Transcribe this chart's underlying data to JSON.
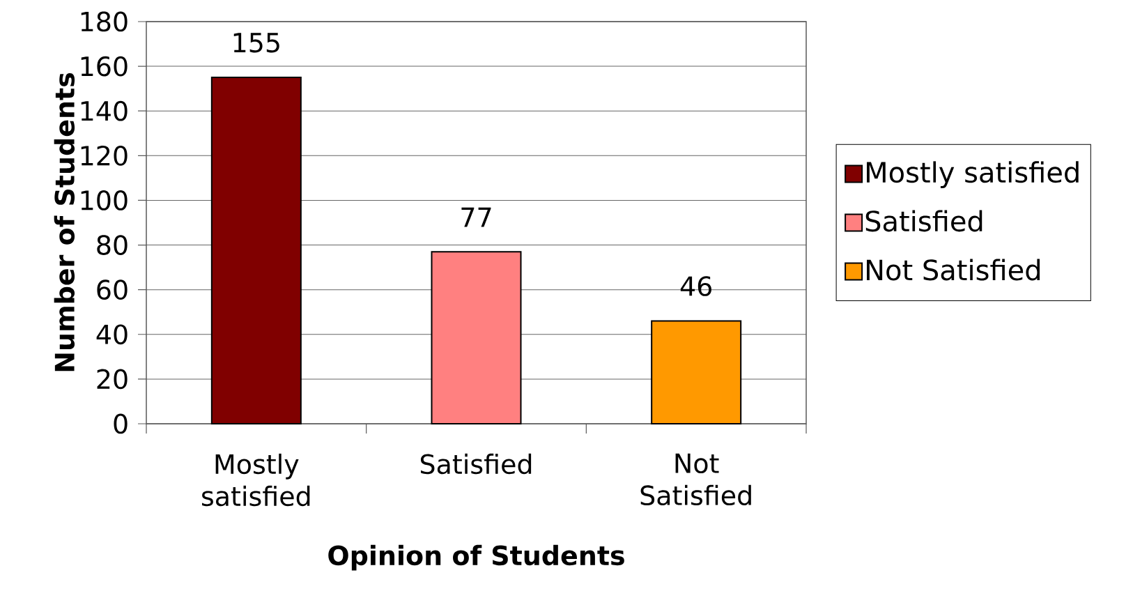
{
  "chart_data": {
    "type": "bar",
    "categories": [
      "Mostly satisfied",
      "Satisfied",
      "Not Satisfied"
    ],
    "series": [
      {
        "name": "Mostly satisfied",
        "color": "#800000",
        "values": [
          155,
          null,
          null
        ]
      },
      {
        "name": "Satisfied",
        "color": "#ff8080",
        "values": [
          null,
          77,
          null
        ]
      },
      {
        "name": "Not Satisfied",
        "color": "#ff9900",
        "values": [
          null,
          null,
          46
        ]
      }
    ],
    "xlabel": "Opinion of Students",
    "ylabel": "Number of Students",
    "ylim": [
      0,
      180
    ],
    "yticks": [
      0,
      20,
      40,
      60,
      80,
      100,
      120,
      140,
      160,
      180
    ],
    "grid": "y",
    "legend": "right",
    "data_labels": true
  }
}
